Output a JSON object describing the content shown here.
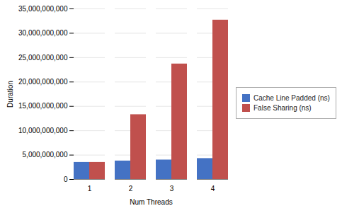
{
  "chart_data": {
    "type": "bar",
    "categories": [
      "1",
      "2",
      "3",
      "4"
    ],
    "series": [
      {
        "name": "Cache Line Padded (ns)",
        "color": "#4472C4",
        "values": [
          3500000000,
          3800000000,
          4000000000,
          4300000000
        ]
      },
      {
        "name": "False Sharing (ns)",
        "color": "#C0504D",
        "values": [
          3500000000,
          13300000000,
          23700000000,
          32700000000
        ]
      }
    ],
    "xlabel": "Num Threads",
    "ylabel": "Duration",
    "ylim": [
      0,
      35000000000
    ],
    "yticks": [
      0,
      {
        "value": 5000000000,
        "label": "5,000,000,000"
      },
      {
        "value": 10000000000,
        "label": "10,000,000,000"
      },
      {
        "value": 15000000000,
        "label": "15,000,000,000"
      },
      {
        "value": 20000000000,
        "label": "20,000,000,000"
      },
      {
        "value": 25000000000,
        "label": "25,000,000,000"
      },
      {
        "value": 30000000000,
        "label": "30,000,000,000"
      },
      {
        "value": 35000000000,
        "label": "35,000,000,000"
      }
    ],
    "grid": true,
    "legend": "right"
  }
}
